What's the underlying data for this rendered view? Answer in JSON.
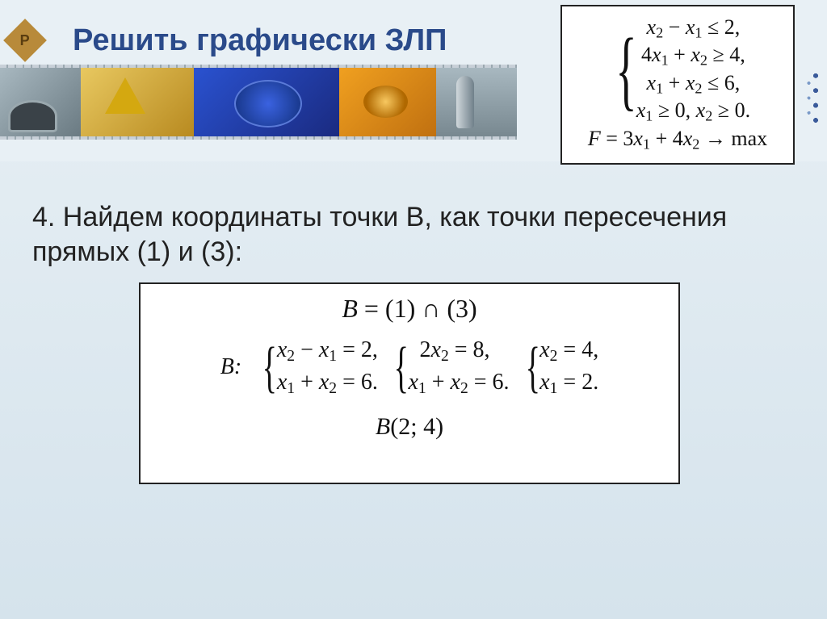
{
  "badge": {
    "letter": "P"
  },
  "title": "Решить графически ЗЛП",
  "colors": {
    "title": "#2a4a8a",
    "border": "#222222",
    "bg_top": "#e8f0f5",
    "bg_bot": "#d5e3ec"
  },
  "constraints_box": {
    "lines": [
      "x₂ − x₁ ≤ 2,",
      "4x₁ + x₂ ≥ 4,",
      "x₁ + x₂ ≤ 6,",
      "x₁ ≥ 0, x₂ ≥ 0."
    ],
    "objective": "F = 3x₁ + 4x₂ → max"
  },
  "body_text": "4. Найдем координаты точки B, как точки пересечения прямых (1) и (3):",
  "solution_box": {
    "line1": "B = (1) ∩ (3)",
    "prefix": "B:",
    "system1": [
      "x₂ − x₁ = 2,",
      "x₁ + x₂ = 6."
    ],
    "system2": [
      "2x₂ = 8,",
      "x₁ + x₂ = 6."
    ],
    "system3": [
      "x₂ = 4,",
      "x₁ = 2."
    ],
    "result": "B(2; 4)"
  }
}
